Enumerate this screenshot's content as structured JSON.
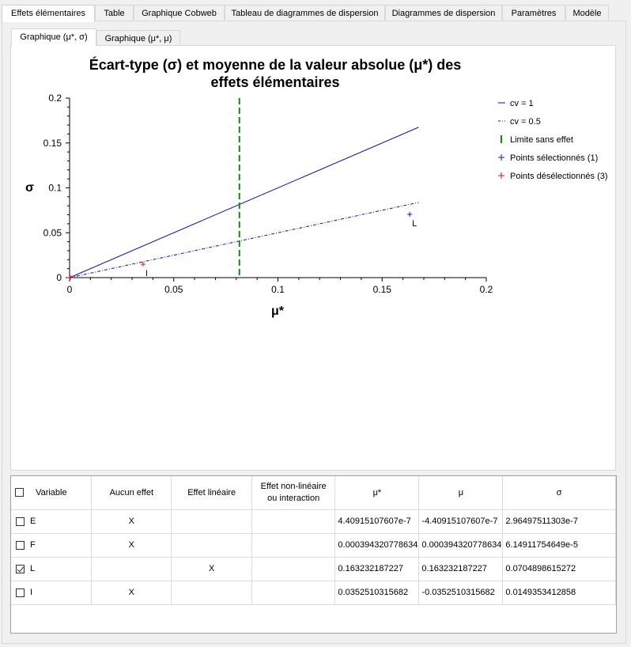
{
  "tabs": [
    {
      "label": "Effets élémentaires",
      "active": true
    },
    {
      "label": "Table",
      "active": false
    },
    {
      "label": "Graphique Cobweb",
      "active": false
    },
    {
      "label": "Tableau de diagrammes de dispersion",
      "active": false
    },
    {
      "label": "Diagrammes de dispersion",
      "active": false
    },
    {
      "label": "Paramètres",
      "active": false
    },
    {
      "label": "Modèle",
      "active": false
    }
  ],
  "subtabs": [
    {
      "label": "Graphique (μ*, σ)",
      "active": true
    },
    {
      "label": "Graphique (μ*, μ)",
      "active": false
    }
  ],
  "chart_data": {
    "type": "scatter",
    "title_line1": "Écart-type (σ) et moyenne de la valeur absolue (μ*) des",
    "title_line2": "effets élémentaires",
    "xlabel": "μ*",
    "ylabel": "σ",
    "xlim": [
      0,
      0.2
    ],
    "ylim": [
      0,
      0.2
    ],
    "x_ticks": [
      "0",
      "0.05",
      "0.1",
      "0.15",
      "0.2"
    ],
    "y_ticks": [
      "0",
      "0.05",
      "0.1",
      "0.15",
      "0.2"
    ],
    "x_tick_values": [
      0,
      0.05,
      0.1,
      0.15,
      0.2
    ],
    "y_tick_values": [
      0,
      0.05,
      0.1,
      0.15,
      0.2
    ],
    "lines": [
      {
        "name": "cv = 1",
        "x": [
          0,
          0.1675
        ],
        "y": [
          0,
          0.1675
        ],
        "color": "#1010a0",
        "dash": "solid"
      },
      {
        "name": "cv = 0.5",
        "x": [
          0,
          0.1675
        ],
        "y": [
          0,
          0.08375
        ],
        "color": "#1010a0",
        "dash": "dashdot"
      }
    ],
    "no_effect_limit": {
      "name": "Limite sans effet",
      "x": 0.0815,
      "color": "#118811"
    },
    "selected_points": {
      "name": "Points sélectionnés (1)",
      "color": "#1515a5",
      "points": [
        {
          "label": "L",
          "x": 0.163232187227,
          "y": 0.0704898615272
        }
      ]
    },
    "deselected_points": {
      "name": "Points désélectionnés (3)",
      "color": "#d01515",
      "points": [
        {
          "label": "I",
          "x": 0.0352510315682,
          "y": 0.0149353412858
        },
        {
          "label": "",
          "x": 4.40915e-07,
          "y": 2.96497e-07
        },
        {
          "label": "",
          "x": 0.000394320778634,
          "y": 6.14911754649e-05
        }
      ]
    },
    "legend_position": "right",
    "grid": false
  },
  "table": {
    "headers": {
      "variable": "Variable",
      "no_effect": "Aucun effet",
      "linear": "Effet linéaire",
      "nonlinear_line1": "Effet non-linéaire",
      "nonlinear_line2": "ou interaction",
      "mustar": "μ*",
      "mu": "μ",
      "sigma": "σ"
    },
    "rows": [
      {
        "checked": false,
        "variable": "E",
        "no_effect": "X",
        "linear": "",
        "nonlinear": "",
        "mustar": "4.40915107607e-7",
        "mu": "-4.40915107607e-7",
        "sigma": "2.96497511303e-7"
      },
      {
        "checked": false,
        "variable": "F",
        "no_effect": "X",
        "linear": "",
        "nonlinear": "",
        "mustar": "0.000394320778634",
        "mu": "0.000394320778634",
        "sigma": "6.14911754649e-5"
      },
      {
        "checked": true,
        "variable": "L",
        "no_effect": "",
        "linear": "X",
        "nonlinear": "",
        "mustar": "0.163232187227",
        "mu": "0.163232187227",
        "sigma": "0.0704898615272"
      },
      {
        "checked": false,
        "variable": "I",
        "no_effect": "X",
        "linear": "",
        "nonlinear": "",
        "mustar": "0.0352510315682",
        "mu": "-0.0352510315682",
        "sigma": "0.0149353412858"
      }
    ]
  }
}
